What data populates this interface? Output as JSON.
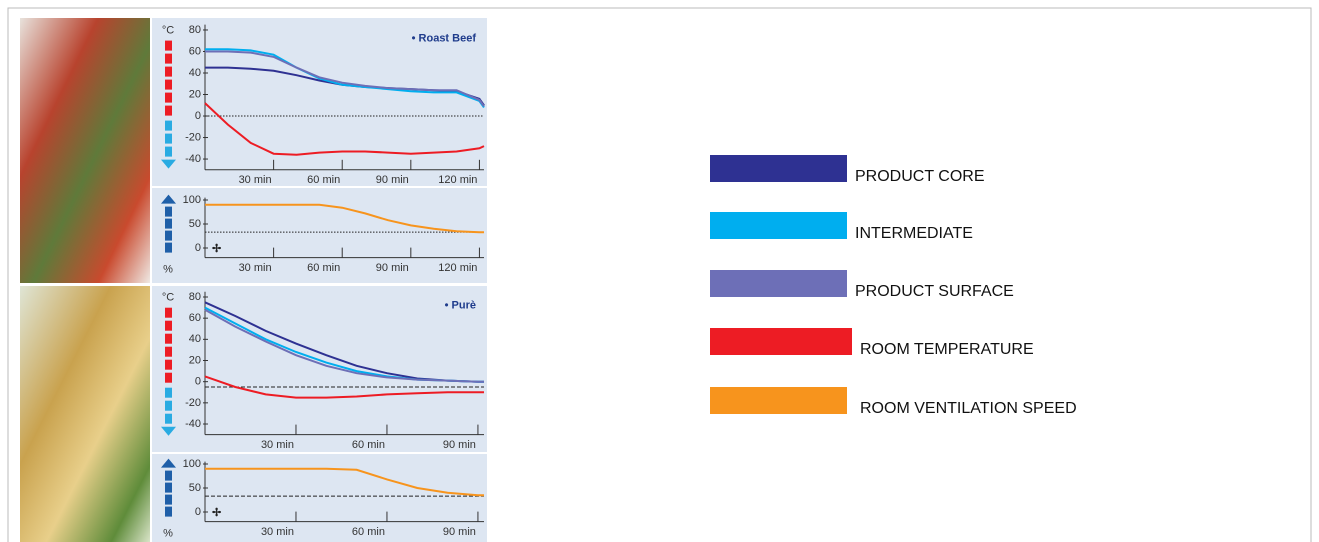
{
  "chart_data": [
    {
      "type": "line",
      "title": "• Roast Beef",
      "y_unit": "°C",
      "x": [
        0,
        10,
        20,
        30,
        40,
        50,
        60,
        70,
        80,
        90,
        100,
        110,
        120,
        122
      ],
      "xlim": [
        0,
        122
      ],
      "xticks": [
        {
          "value": 30,
          "label": "30 min"
        },
        {
          "value": 60,
          "label": "60 min"
        },
        {
          "value": 90,
          "label": "90 min"
        },
        {
          "value": 120,
          "label": "120 min"
        }
      ],
      "ylim": [
        -50,
        85
      ],
      "yticks": [
        80,
        60,
        40,
        20,
        0,
        -20,
        -40
      ],
      "hline": 0,
      "series": [
        {
          "name": "PRODUCT CORE",
          "color": "#2e3192",
          "values": [
            45,
            45,
            44,
            42,
            38,
            33,
            29,
            27,
            26,
            25,
            24,
            23,
            16,
            10
          ]
        },
        {
          "name": "INTERMEDIATE",
          "color": "#00aeef",
          "values": [
            62,
            62,
            61,
            57,
            45,
            35,
            29,
            27,
            25,
            23,
            22,
            22,
            14,
            8
          ]
        },
        {
          "name": "PRODUCT SURFACE",
          "color": "#6d6fb7",
          "values": [
            60,
            60,
            59,
            55,
            45,
            36,
            31,
            28,
            26,
            25,
            24,
            24,
            15,
            9
          ]
        },
        {
          "name": "ROOM TEMPERATURE",
          "color": "#ed1c24",
          "values": [
            12,
            -8,
            -25,
            -35,
            -36,
            -34,
            -33,
            -33,
            -34,
            -35,
            -34,
            -33,
            -30,
            -28
          ]
        }
      ]
    },
    {
      "type": "line",
      "y_unit": "%",
      "x": [
        0,
        10,
        20,
        30,
        40,
        50,
        60,
        70,
        80,
        90,
        100,
        110,
        120,
        122
      ],
      "xlim": [
        0,
        122
      ],
      "xticks": [
        {
          "value": 30,
          "label": "30 min"
        },
        {
          "value": 60,
          "label": "60 min"
        },
        {
          "value": 90,
          "label": "90 min"
        },
        {
          "value": 120,
          "label": "120 min"
        }
      ],
      "ylim": [
        -20,
        105
      ],
      "yticks": [
        100,
        50,
        0
      ],
      "hline": 33,
      "series": [
        {
          "name": "ROOM VENTILATION SPEED",
          "color": "#f7941d",
          "values": [
            90,
            90,
            90,
            90,
            90,
            90,
            84,
            72,
            58,
            47,
            40,
            35,
            33,
            33
          ]
        }
      ]
    },
    {
      "type": "line",
      "title": "• Purè",
      "y_unit": "°C",
      "x": [
        0,
        10,
        20,
        30,
        40,
        50,
        60,
        70,
        80,
        90,
        92
      ],
      "xlim": [
        0,
        92
      ],
      "xticks": [
        {
          "value": 30,
          "label": "30 min"
        },
        {
          "value": 60,
          "label": "60 min"
        },
        {
          "value": 90,
          "label": "90 min"
        }
      ],
      "ylim": [
        -50,
        85
      ],
      "yticks": [
        80,
        60,
        40,
        20,
        0,
        -20,
        -40
      ],
      "hline": -5,
      "series": [
        {
          "name": "PRODUCT CORE",
          "color": "#2e3192",
          "values": [
            75,
            62,
            48,
            36,
            25,
            15,
            8,
            3,
            1,
            0,
            0
          ]
        },
        {
          "name": "INTERMEDIATE",
          "color": "#00aeef",
          "values": [
            70,
            55,
            40,
            28,
            18,
            10,
            5,
            2,
            1,
            0,
            0
          ]
        },
        {
          "name": "PRODUCT SURFACE",
          "color": "#6d6fb7",
          "values": [
            68,
            52,
            38,
            25,
            15,
            8,
            4,
            2,
            1,
            0,
            0
          ]
        },
        {
          "name": "ROOM TEMPERATURE",
          "color": "#ed1c24",
          "values": [
            5,
            -5,
            -12,
            -15,
            -15,
            -14,
            -12,
            -11,
            -10,
            -10,
            -10
          ]
        }
      ]
    },
    {
      "type": "line",
      "y_unit": "%",
      "x": [
        0,
        10,
        20,
        30,
        40,
        50,
        60,
        70,
        80,
        90,
        92
      ],
      "xlim": [
        0,
        92
      ],
      "xticks": [
        {
          "value": 30,
          "label": "30 min"
        },
        {
          "value": 60,
          "label": "60 min"
        },
        {
          "value": 90,
          "label": "90 min"
        }
      ],
      "ylim": [
        -20,
        105
      ],
      "yticks": [
        100,
        50,
        0
      ],
      "hline": 33,
      "series": [
        {
          "name": "ROOM VENTILATION SPEED",
          "color": "#f7941d",
          "values": [
            90,
            90,
            90,
            90,
            90,
            88,
            68,
            50,
            40,
            35,
            35
          ]
        }
      ]
    }
  ]
}
